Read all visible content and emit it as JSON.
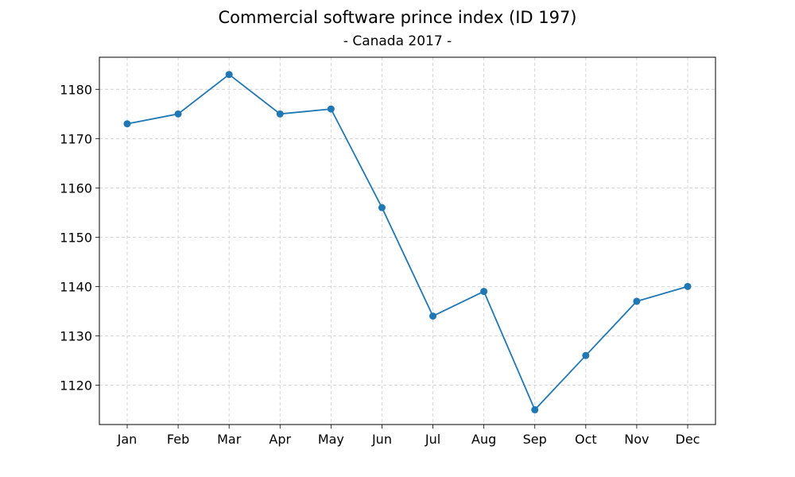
{
  "chart_data": {
    "type": "line",
    "title": "Commercial software prince index (ID 197)",
    "subtitle": "- Canada 2017 -",
    "xlabel": "",
    "ylabel": "",
    "categories": [
      "Jan",
      "Feb",
      "Mar",
      "Apr",
      "May",
      "Jun",
      "Jul",
      "Aug",
      "Sep",
      "Oct",
      "Nov",
      "Dec"
    ],
    "series": [
      {
        "values": [
          1173,
          1175,
          1183,
          1175,
          1176,
          1156,
          1134,
          1139,
          1115,
          1126,
          1137,
          1140
        ],
        "color": "#1f77b4",
        "marker": "circle"
      }
    ],
    "ylim": [
      1112,
      1186.5
    ],
    "yticks": [
      1120,
      1130,
      1140,
      1150,
      1160,
      1170,
      1180
    ],
    "grid": true,
    "grid_style": "dashed",
    "legend": "none"
  }
}
